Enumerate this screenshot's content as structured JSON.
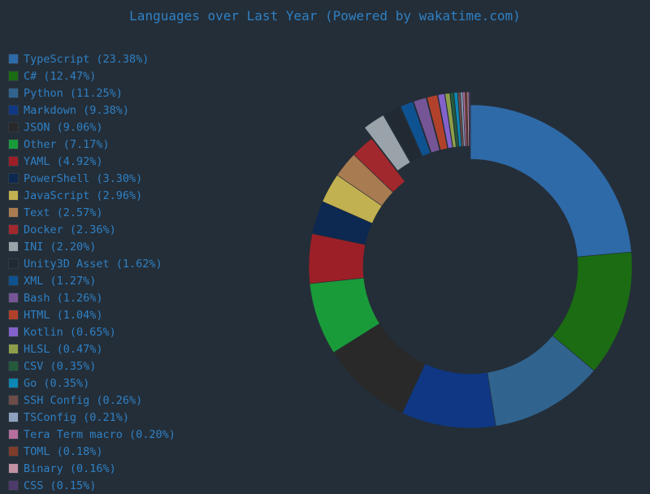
{
  "chart_data": {
    "type": "pie",
    "subtype": "donut",
    "title": "Languages over Last Year (Powered by wakatime.com)",
    "legend_position": "left",
    "slices": [
      {
        "label": "TypeScript",
        "value": 23.38,
        "display": "TypeScript (23.38%)",
        "color": "#2e6aa8",
        "exploded": false
      },
      {
        "label": "C#",
        "value": 12.47,
        "display": "C# (12.47%)",
        "color": "#1b6c13",
        "exploded": false
      },
      {
        "label": "Python",
        "value": 11.25,
        "display": "Python (11.25%)",
        "color": "#30648f",
        "exploded": false
      },
      {
        "label": "Markdown",
        "value": 9.38,
        "display": "Markdown (9.38%)",
        "color": "#0f3783",
        "exploded": false
      },
      {
        "label": "JSON",
        "value": 9.06,
        "display": "JSON (9.06%)",
        "color": "#292929",
        "exploded": false
      },
      {
        "label": "Other",
        "value": 7.17,
        "display": "Other (7.17%)",
        "color": "#1a9b3a",
        "exploded": false
      },
      {
        "label": "YAML",
        "value": 4.92,
        "display": "YAML (4.92%)",
        "color": "#9c1f27",
        "exploded": false
      },
      {
        "label": "PowerShell",
        "value": 3.3,
        "display": "PowerShell (3.30%)",
        "color": "#0d2851",
        "exploded": false
      },
      {
        "label": "JavaScript",
        "value": 2.96,
        "display": "JavaScript (2.96%)",
        "color": "#c2b150",
        "exploded": false
      },
      {
        "label": "Text",
        "value": 2.57,
        "display": "Text (2.57%)",
        "color": "#a97b51",
        "exploded": false
      },
      {
        "label": "Docker",
        "value": 2.36,
        "display": "Docker (2.36%)",
        "color": "#a1282d",
        "exploded": false
      },
      {
        "label": "INI",
        "value": 2.2,
        "display": "INI (2.20%)",
        "color": "#9aa3aa",
        "exploded": true
      },
      {
        "label": "Unity3D Asset",
        "value": 1.62,
        "display": "Unity3D Asset (1.62%)",
        "color": "#212a33",
        "exploded": true
      },
      {
        "label": "XML",
        "value": 1.27,
        "display": "XML (1.27%)",
        "color": "#0e5291",
        "exploded": true
      },
      {
        "label": "Bash",
        "value": 1.26,
        "display": "Bash (1.26%)",
        "color": "#765596",
        "exploded": true
      },
      {
        "label": "HTML",
        "value": 1.04,
        "display": "HTML (1.04%)",
        "color": "#b2412b",
        "exploded": true
      },
      {
        "label": "Kotlin",
        "value": 0.65,
        "display": "Kotlin (0.65%)",
        "color": "#8462cb",
        "exploded": true
      },
      {
        "label": "HLSL",
        "value": 0.47,
        "display": "HLSL (0.47%)",
        "color": "#8f9e4a",
        "exploded": true
      },
      {
        "label": "CSV",
        "value": 0.35,
        "display": "CSV (0.35%)",
        "color": "#245a3c",
        "exploded": true
      },
      {
        "label": "Go",
        "value": 0.35,
        "display": "Go (0.35%)",
        "color": "#0c86b3",
        "exploded": true
      },
      {
        "label": "SSH Config",
        "value": 0.26,
        "display": "SSH Config (0.26%)",
        "color": "#6e4c48",
        "exploded": true
      },
      {
        "label": "TSConfig",
        "value": 0.21,
        "display": "TSConfig (0.21%)",
        "color": "#8ea1bf",
        "exploded": true
      },
      {
        "label": "Tera Term macro",
        "value": 0.2,
        "display": "Tera Term macro (0.20%)",
        "color": "#b66e9d",
        "exploded": true
      },
      {
        "label": "TOML",
        "value": 0.18,
        "display": "TOML (0.18%)",
        "color": "#7e3c2a",
        "exploded": true
      },
      {
        "label": "Binary",
        "value": 0.16,
        "display": "Binary (0.16%)",
        "color": "#c292a4",
        "exploded": true
      },
      {
        "label": "CSS",
        "value": 0.15,
        "display": "CSS (0.15%)",
        "color": "#4f3b6b",
        "exploded": true
      }
    ]
  }
}
